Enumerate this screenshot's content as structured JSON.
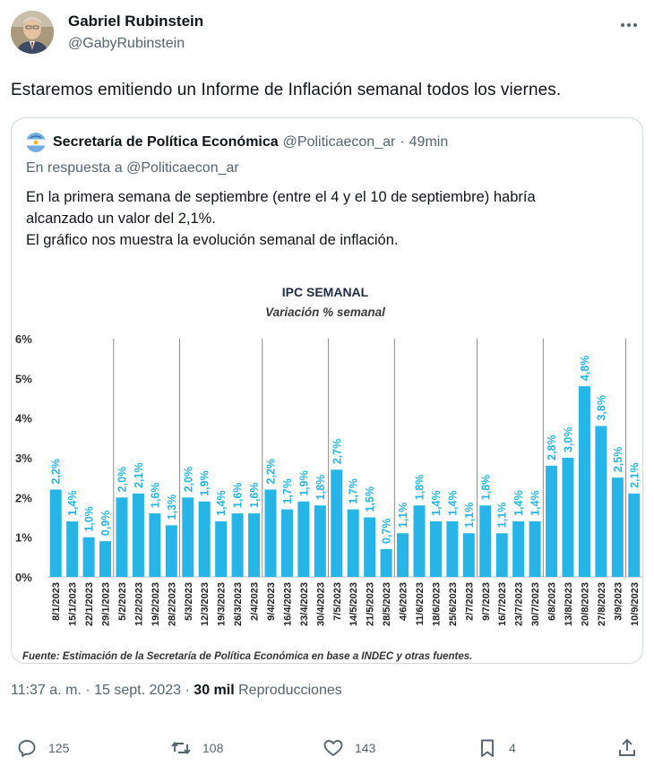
{
  "author": {
    "name": "Gabriel Rubinstein",
    "handle": "@GabyRubinstein"
  },
  "tweet_text": "Estaremos emitiendo un Informe de Inflación semanal todos los viernes.",
  "quote": {
    "name": "Secretaría de Política Económica",
    "handle": "@Politicaecon_ar",
    "separator": "·",
    "time": "49min",
    "reply_to": "En respuesta a @Politicaecon_ar",
    "text_lines": [
      "En la primera semana de septiembre (entre el 4 y el 10 de septiembre) habría",
      "alcanzado un valor del 2,1%.",
      "El gráfico nos muestra la evolución semanal de inflación."
    ]
  },
  "chart_data": {
    "type": "bar",
    "title": "IPC SEMANAL",
    "subtitle": "Variación % semanal",
    "footnote": "Fuente: Estimación de la Secretaría de Política Económica en base a INDEC y otras fuentes.",
    "ylim": [
      0,
      6
    ],
    "yticks": [
      "0%",
      "1%",
      "2%",
      "3%",
      "4%",
      "5%",
      "6%"
    ],
    "categories": [
      "8/1/2023",
      "15/1/2023",
      "22/1/2023",
      "29/1/2023",
      "5/2/2023",
      "12/2/2023",
      "19/2/2023",
      "28/2/2023",
      "5/3/2023",
      "12/3/2023",
      "19/3/2023",
      "26/3/2023",
      "2/4/2023",
      "9/4/2023",
      "16/4/2023",
      "23/4/2023",
      "30/4/2023",
      "7/5/2023",
      "14/5/2023",
      "21/5/2023",
      "28/5/2023",
      "4/6/2023",
      "11/6/2023",
      "18/6/2023",
      "25/6/2023",
      "2/7/2023",
      "9/7/2023",
      "16/7/2023",
      "23/7/2023",
      "30/7/2023",
      "6/8/2023",
      "13/8/2023",
      "20/8/2023",
      "27/8/2023",
      "3/9/2023",
      "10/9/2023"
    ],
    "values": [
      2.2,
      1.4,
      1.0,
      0.9,
      2.0,
      2.1,
      1.6,
      1.3,
      2.0,
      1.9,
      1.4,
      1.6,
      1.6,
      2.2,
      1.7,
      1.9,
      1.8,
      2.7,
      1.7,
      1.5,
      0.7,
      1.1,
      1.8,
      1.4,
      1.4,
      1.1,
      1.8,
      1.1,
      1.4,
      1.4,
      2.8,
      3.0,
      4.8,
      3.8,
      2.5,
      2.1
    ],
    "labels": [
      "2,2%",
      "1,4%",
      "1,0%",
      "0,9%",
      "2,0%",
      "2,1%",
      "1,6%",
      "1,3%",
      "2,0%",
      "1,9%",
      "1,4%",
      "1,6%",
      "1,6%",
      "2,2%",
      "1,7%",
      "1,9%",
      "1,8%",
      "2,7%",
      "1,7%",
      "1,5%",
      "0,7%",
      "1,1%",
      "1,8%",
      "1,4%",
      "1,4%",
      "1,1%",
      "1,8%",
      "1,1%",
      "1,4%",
      "1,4%",
      "2,8%",
      "3,0%",
      "4,8%",
      "3,8%",
      "2,5%",
      "2,1%"
    ],
    "month_separators_after": [
      3,
      7,
      12,
      16,
      20,
      25,
      29,
      34
    ],
    "bar_color": "#26b5e6",
    "label_color": "#26b5e6"
  },
  "meta": {
    "time": "11:37 a. m.",
    "date": "15 sept. 2023",
    "dot": "·",
    "views_count": "30 mil",
    "views_label": "Reproducciones"
  },
  "actions": {
    "replies": "125",
    "reposts": "108",
    "likes": "143",
    "bookmarks": "4"
  }
}
